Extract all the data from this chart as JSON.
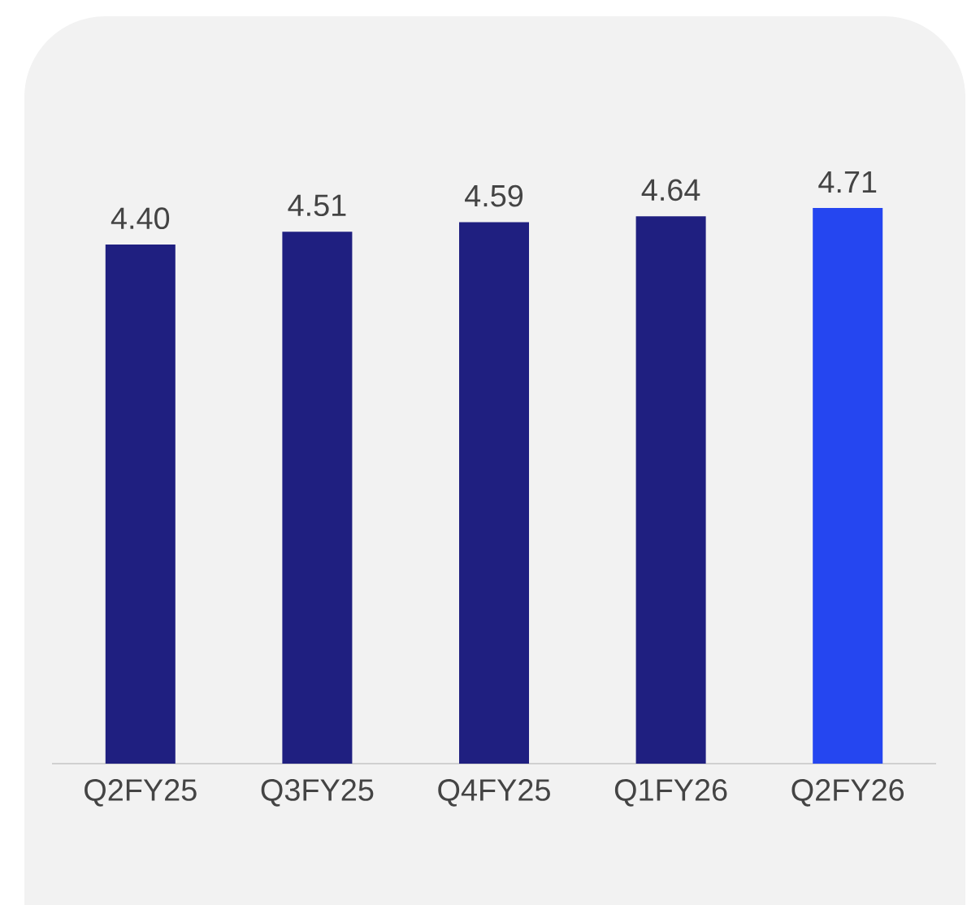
{
  "chart_data": {
    "type": "bar",
    "categories": [
      "Q2FY25",
      "Q3FY25",
      "Q4FY25",
      "Q1FY26",
      "Q2FY26"
    ],
    "values": [
      4.4,
      4.51,
      4.59,
      4.64,
      4.71
    ],
    "value_labels": [
      "4.40",
      "4.51",
      "4.59",
      "4.64",
      "4.71"
    ],
    "colors": [
      "#1f1f80",
      "#1f1f80",
      "#1f1f80",
      "#1f1f80",
      "#2546f0"
    ]
  }
}
